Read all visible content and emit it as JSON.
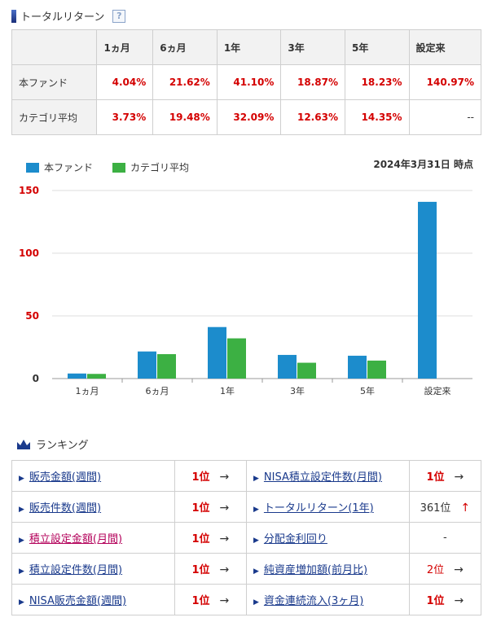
{
  "total_return": {
    "title": "トータルリターン",
    "help": "?",
    "headers": [
      "",
      "1ヵ月",
      "6ヵ月",
      "1年",
      "3年",
      "5年",
      "設定来"
    ],
    "rows": [
      {
        "label": "本ファンド",
        "values": [
          "4.04%",
          "21.62%",
          "41.10%",
          "18.87%",
          "18.23%",
          "140.97%"
        ]
      },
      {
        "label": "カテゴリ平均",
        "values": [
          "3.73%",
          "19.48%",
          "32.09%",
          "12.63%",
          "14.35%",
          "--"
        ]
      }
    ]
  },
  "legend": {
    "fund": "本ファンド",
    "category": "カテゴリ平均"
  },
  "as_of": "2024年3月31日 時点",
  "colors": {
    "fund": "#1c8ccc",
    "category": "#3cb043",
    "accent_red": "#d40000",
    "link_blue": "#1a3a8c"
  },
  "chart_data": {
    "type": "bar",
    "categories": [
      "1ヵ月",
      "6ヵ月",
      "1年",
      "3年",
      "5年",
      "設定来"
    ],
    "series": [
      {
        "name": "本ファンド",
        "values": [
          4.04,
          21.62,
          41.1,
          18.87,
          18.23,
          140.97
        ]
      },
      {
        "name": "カテゴリ平均",
        "values": [
          3.73,
          19.48,
          32.09,
          12.63,
          14.35,
          null
        ]
      }
    ],
    "yticks": [
      0,
      50,
      100,
      150
    ],
    "ylim": [
      0,
      150
    ],
    "grid": true,
    "legend_position": "top-left"
  },
  "ranking": {
    "title": "ランキング",
    "rows": [
      {
        "left_label": "販売金額(週間)",
        "left_rank": "1位",
        "left_arrow": "→",
        "right_label": "NISA積立設定件数(月間)",
        "right_rank": "1位",
        "right_arrow": "→"
      },
      {
        "left_label": "販売件数(週間)",
        "left_rank": "1位",
        "left_arrow": "→",
        "right_label": "トータルリターン(1年)",
        "right_rank": "361位",
        "right_arrow": "↑"
      },
      {
        "left_label": "積立設定金額(月間)",
        "left_rank": "1位",
        "left_arrow": "→",
        "right_label": "分配金利回り",
        "right_rank": "-",
        "right_arrow": ""
      },
      {
        "left_label": "積立設定件数(月間)",
        "left_rank": "1位",
        "left_arrow": "→",
        "right_label": "純資産増加額(前月比)",
        "right_rank": "2位",
        "right_arrow": "→"
      },
      {
        "left_label": "NISA販売金額(週間)",
        "left_rank": "1位",
        "left_arrow": "→",
        "right_label": "資金連続流入(3ヶ月)",
        "right_rank": "1位",
        "right_arrow": "→"
      }
    ]
  }
}
